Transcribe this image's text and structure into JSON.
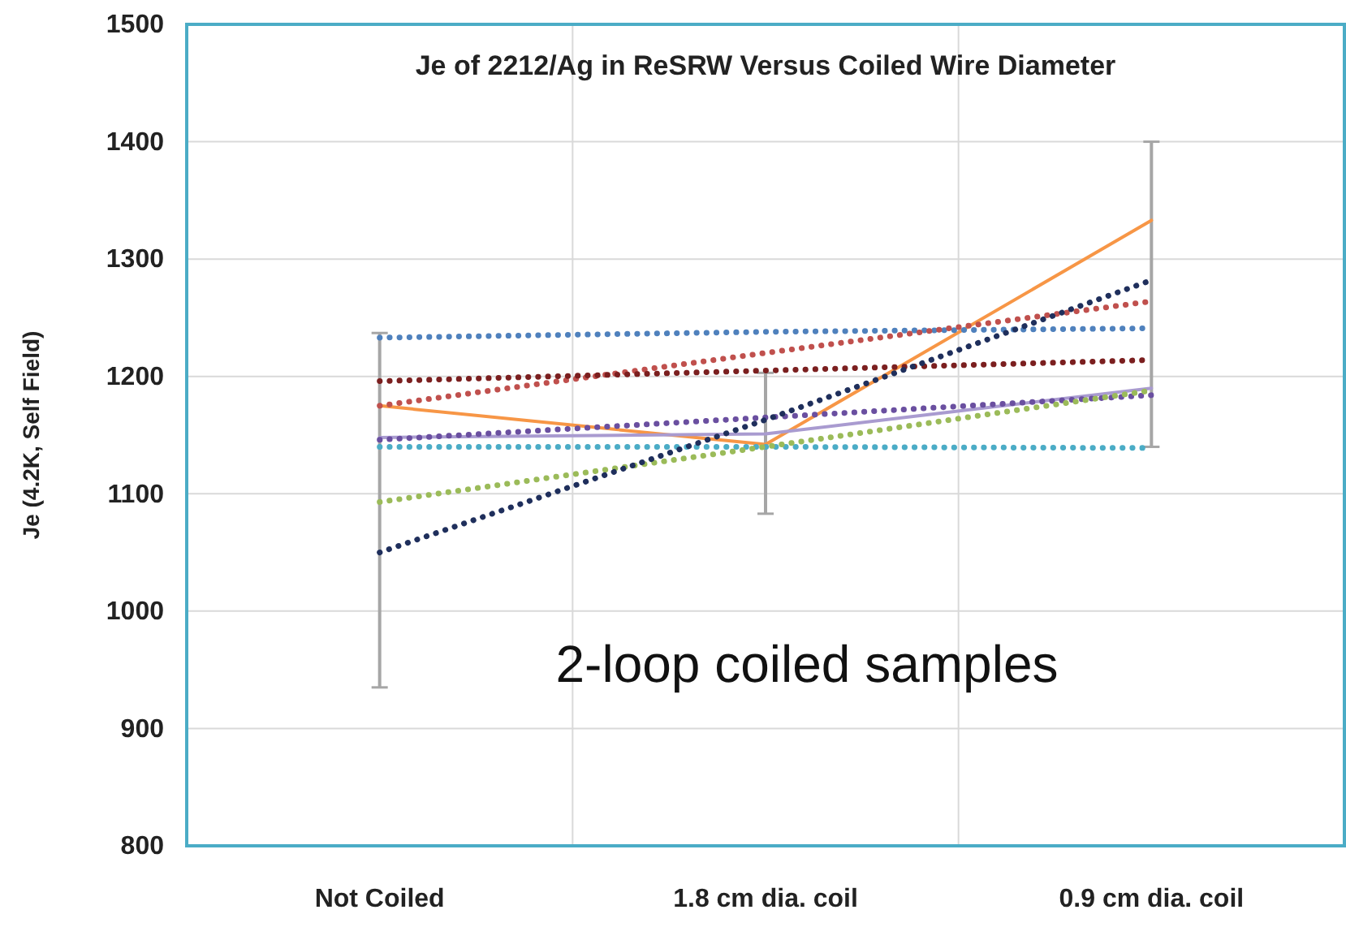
{
  "chart_data": {
    "type": "line",
    "title": "Je of 2212/Ag in ReSRW Versus Coiled Wire Diameter",
    "ylabel": "Je (4.2K, Self Field)",
    "annotations": [
      "2-loop coiled samples"
    ],
    "categories": [
      "Not Coiled",
      "1.8 cm dia. coil",
      "0.9 cm dia. coil"
    ],
    "ylim": [
      800,
      1500
    ],
    "yticks": [
      800,
      900,
      1000,
      1100,
      1200,
      1300,
      1400,
      1500
    ],
    "grid": true,
    "marker": "none",
    "series": [
      {
        "color": "#f79646",
        "line_style": "solid",
        "values": [
          1175,
          1142,
          1333
        ],
        "errors": [
          [
            935,
            1237
          ],
          [
            1083,
            1203
          ],
          [
            1140,
            1400
          ]
        ]
      },
      {
        "color": "#4f81bd",
        "line_style": "dotted",
        "values": [
          1233,
          1238,
          1241
        ]
      },
      {
        "color": "#c0504d",
        "line_style": "dotted",
        "values": [
          1175,
          1220,
          1264
        ]
      },
      {
        "color": "#7b1f1f",
        "line_style": "dotted",
        "values": [
          1196,
          1205,
          1214
        ]
      },
      {
        "color": "#a99bd0",
        "line_style": "solid",
        "values": [
          1148,
          1151,
          1190
        ]
      },
      {
        "color": "#6a4fa0",
        "line_style": "dotted",
        "values": [
          1146,
          1165,
          1184
        ]
      },
      {
        "color": "#4bacc6",
        "line_style": "dotted",
        "values": [
          1140,
          1140,
          1139
        ]
      },
      {
        "color": "#9bbb59",
        "line_style": "dotted",
        "values": [
          1093,
          1140,
          1188
        ]
      },
      {
        "color": "#1f2f5c",
        "line_style": "dotted",
        "values": [
          1050,
          1163,
          1282
        ]
      }
    ]
  }
}
